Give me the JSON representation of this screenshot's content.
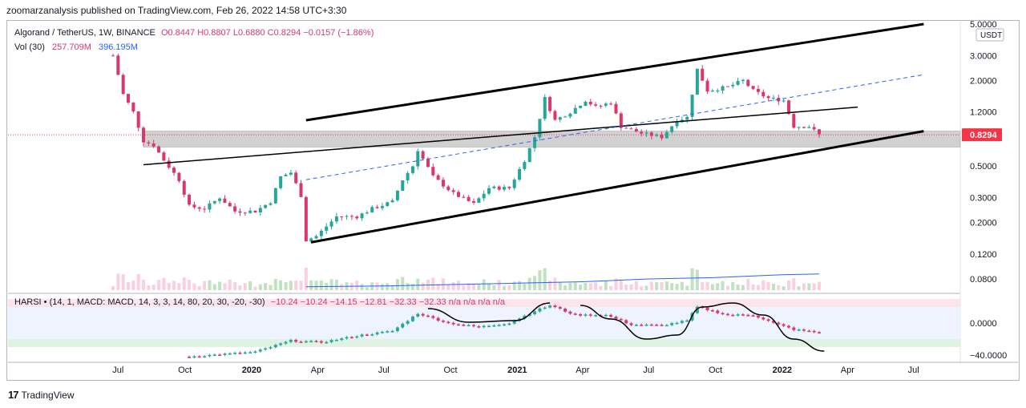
{
  "header": {
    "published": "zoomarzanalysis published on TradingView.com, Feb 26, 2022 14:58 UTC+3:30"
  },
  "legend": {
    "symbol": "Algorand / TetherUS, 1W, BINANCE",
    "ohlc": "O0.8447  H0.8807  L0.6880  C0.8294  −0.0157 (−1.86%)"
  },
  "volume_legend": {
    "label": "Vol (30)",
    "value1": "257.709M",
    "value2": "396.195M"
  },
  "indicator_legend": {
    "name": "HARSI • (14, 1, MACD: MACD, 14, 3, 3, 14, 80, 20, 30, -20, -30)",
    "values": "−10.24  −10.24  −14.15  −12.81  −32.33  −32.33  n/a  n/a  n/a  n/a"
  },
  "footer": {
    "logo_text": "TradingView",
    "logo_mark": "17"
  },
  "price_badge": {
    "value": "0.8294",
    "color": "#f23645"
  },
  "currency_badge": "USDT",
  "colors": {
    "up": "#26a69a",
    "down": "#d8386a",
    "ma": "#2962ff",
    "band_fill": "#c9c9c9"
  },
  "chart_data": {
    "type": "candlestick",
    "y_scale": "log",
    "y_ticks": [
      "5.0000",
      "3.0000",
      "2.0000",
      "1.2000",
      "0.8294",
      "0.5000",
      "0.3000",
      "0.2000",
      "0.1200",
      "0.0800"
    ],
    "y_tick_values": [
      5.0,
      3.0,
      2.0,
      1.2,
      0.8294,
      0.5,
      0.3,
      0.2,
      0.12,
      0.08
    ],
    "x_ticks": [
      "Jul",
      "Oct",
      "2020",
      "Apr",
      "Jul",
      "Oct",
      "2021",
      "Apr",
      "Jul",
      "Oct",
      "2022",
      "Apr",
      "Jul"
    ],
    "x_tick_dates": [
      "2019-07-01",
      "2019-10-01",
      "2020-01-01",
      "2020-04-01",
      "2020-07-01",
      "2020-10-01",
      "2021-01-01",
      "2021-04-01",
      "2021-07-01",
      "2021-10-01",
      "2022-01-01",
      "2022-04-01",
      "2022-07-01"
    ],
    "price_keypoints": [
      {
        "date": "2019-06-24",
        "price": 3.0
      },
      {
        "date": "2019-07-01",
        "price": 2.2
      },
      {
        "date": "2019-07-08",
        "price": 1.6
      },
      {
        "date": "2019-07-22",
        "price": 1.2
      },
      {
        "date": "2019-08-05",
        "price": 0.75
      },
      {
        "date": "2019-08-19",
        "price": 0.7
      },
      {
        "date": "2019-09-02",
        "price": 0.55
      },
      {
        "date": "2019-09-23",
        "price": 0.4
      },
      {
        "date": "2019-10-07",
        "price": 0.26
      },
      {
        "date": "2019-10-28",
        "price": 0.25
      },
      {
        "date": "2019-11-18",
        "price": 0.3
      },
      {
        "date": "2019-12-09",
        "price": 0.24
      },
      {
        "date": "2020-01-06",
        "price": 0.24
      },
      {
        "date": "2020-01-27",
        "price": 0.28
      },
      {
        "date": "2020-02-10",
        "price": 0.42
      },
      {
        "date": "2020-02-24",
        "price": 0.45
      },
      {
        "date": "2020-03-09",
        "price": 0.31
      },
      {
        "date": "2020-03-16",
        "price": 0.15
      },
      {
        "date": "2020-03-30",
        "price": 0.16
      },
      {
        "date": "2020-04-27",
        "price": 0.22
      },
      {
        "date": "2020-05-25",
        "price": 0.22
      },
      {
        "date": "2020-06-15",
        "price": 0.25
      },
      {
        "date": "2020-07-13",
        "price": 0.28
      },
      {
        "date": "2020-07-27",
        "price": 0.4
      },
      {
        "date": "2020-08-10",
        "price": 0.5
      },
      {
        "date": "2020-08-17",
        "price": 0.65
      },
      {
        "date": "2020-09-07",
        "price": 0.42
      },
      {
        "date": "2020-10-05",
        "price": 0.32
      },
      {
        "date": "2020-11-02",
        "price": 0.27
      },
      {
        "date": "2020-11-23",
        "price": 0.35
      },
      {
        "date": "2020-12-21",
        "price": 0.35
      },
      {
        "date": "2021-01-11",
        "price": 0.55
      },
      {
        "date": "2021-01-25",
        "price": 0.8
      },
      {
        "date": "2021-02-08",
        "price": 1.5
      },
      {
        "date": "2021-02-22",
        "price": 1.05
      },
      {
        "date": "2021-03-15",
        "price": 1.2
      },
      {
        "date": "2021-04-05",
        "price": 1.45
      },
      {
        "date": "2021-04-19",
        "price": 1.3
      },
      {
        "date": "2021-05-10",
        "price": 1.4
      },
      {
        "date": "2021-05-24",
        "price": 0.95
      },
      {
        "date": "2021-06-21",
        "price": 0.85
      },
      {
        "date": "2021-07-19",
        "price": 0.8
      },
      {
        "date": "2021-08-09",
        "price": 1.05
      },
      {
        "date": "2021-08-23",
        "price": 1.1
      },
      {
        "date": "2021-09-06",
        "price": 2.4
      },
      {
        "date": "2021-09-20",
        "price": 1.7
      },
      {
        "date": "2021-10-18",
        "price": 1.8
      },
      {
        "date": "2021-11-08",
        "price": 2.0
      },
      {
        "date": "2021-11-22",
        "price": 1.7
      },
      {
        "date": "2021-12-13",
        "price": 1.5
      },
      {
        "date": "2022-01-03",
        "price": 1.45
      },
      {
        "date": "2022-01-17",
        "price": 0.95
      },
      {
        "date": "2022-02-07",
        "price": 0.95
      },
      {
        "date": "2022-02-21",
        "price": 0.8294
      }
    ],
    "support_band": {
      "low": 0.68,
      "high": 0.88,
      "start": "2019-08-05",
      "end": "2022-06-30"
    },
    "trendlines": [
      {
        "name": "channel-upper",
        "color": "#000000",
        "width": 3,
        "from": {
          "date": "2020-03-16",
          "price": 1.05
        },
        "to": {
          "date": "2022-07-15",
          "price": 5.0
        }
      },
      {
        "name": "channel-lower",
        "color": "#000000",
        "width": 3,
        "from": {
          "date": "2020-03-23",
          "price": 0.145
        },
        "to": {
          "date": "2022-07-15",
          "price": 0.88
        }
      },
      {
        "name": "long-support",
        "color": "#000000",
        "width": 1.5,
        "from": {
          "date": "2019-08-05",
          "price": 0.51
        },
        "to": {
          "date": "2022-04-15",
          "price": 1.3
        }
      },
      {
        "name": "mid-dashed",
        "color": "#2962ff",
        "width": 1,
        "dash": true,
        "from": {
          "date": "2020-03-16",
          "price": 0.4
        },
        "to": {
          "date": "2022-07-15",
          "price": 2.2
        }
      }
    ],
    "volume_ma_points": [
      {
        "date": "2020-03-16",
        "v": 0.12
      },
      {
        "date": "2020-07-01",
        "v": 0.15
      },
      {
        "date": "2020-10-01",
        "v": 0.2
      },
      {
        "date": "2021-01-01",
        "v": 0.25
      },
      {
        "date": "2021-04-01",
        "v": 0.3
      },
      {
        "date": "2021-07-01",
        "v": 0.4
      },
      {
        "date": "2021-10-01",
        "v": 0.45
      },
      {
        "date": "2022-01-01",
        "v": 0.55
      },
      {
        "date": "2022-02-21",
        "v": 0.58
      }
    ],
    "indicator": {
      "y_ticks": [
        "0.0000",
        "−40.0000"
      ],
      "y_tick_values": [
        0,
        -40
      ],
      "y_range": [
        -45,
        35
      ],
      "band_upper": [
        20,
        30
      ],
      "band_lower": [
        -20,
        -30
      ],
      "keypoints": [
        {
          "date": "2019-10-07",
          "v": -42
        },
        {
          "date": "2020-01-06",
          "v": -36
        },
        {
          "date": "2020-02-24",
          "v": -22
        },
        {
          "date": "2020-04-06",
          "v": -24
        },
        {
          "date": "2020-06-01",
          "v": -15
        },
        {
          "date": "2020-07-13",
          "v": -10
        },
        {
          "date": "2020-08-17",
          "v": 12
        },
        {
          "date": "2020-09-28",
          "v": 0
        },
        {
          "date": "2020-11-09",
          "v": -5
        },
        {
          "date": "2020-12-21",
          "v": 0
        },
        {
          "date": "2021-01-25",
          "v": 15
        },
        {
          "date": "2021-02-15",
          "v": 22
        },
        {
          "date": "2021-03-22",
          "v": 10
        },
        {
          "date": "2021-05-03",
          "v": 10
        },
        {
          "date": "2021-06-07",
          "v": -2
        },
        {
          "date": "2021-07-19",
          "v": -3
        },
        {
          "date": "2021-08-23",
          "v": 3
        },
        {
          "date": "2021-09-06",
          "v": 20
        },
        {
          "date": "2021-10-18",
          "v": 10
        },
        {
          "date": "2021-11-22",
          "v": 10
        },
        {
          "date": "2021-12-20",
          "v": 0
        },
        {
          "date": "2022-01-17",
          "v": -8
        },
        {
          "date": "2022-02-21",
          "v": -12
        }
      ]
    },
    "drawn_curves": [
      {
        "name": "curve-left",
        "points": [
          {
            "date": "2020-08-31",
            "v": 18
          },
          {
            "date": "2020-10-26",
            "v": 1
          },
          {
            "date": "2020-12-28",
            "v": 3
          },
          {
            "date": "2021-02-15",
            "v": 25
          }
        ]
      },
      {
        "name": "curve-mid",
        "points": [
          {
            "date": "2021-03-29",
            "v": 22
          },
          {
            "date": "2021-05-10",
            "v": 5
          },
          {
            "date": "2021-06-28",
            "v": -20
          },
          {
            "date": "2021-08-09",
            "v": -15
          },
          {
            "date": "2021-09-13",
            "v": 20
          },
          {
            "date": "2021-10-25",
            "v": 25
          },
          {
            "date": "2021-12-06",
            "v": 10
          },
          {
            "date": "2022-01-17",
            "v": -20
          },
          {
            "date": "2022-02-28",
            "v": -35
          }
        ]
      }
    ]
  }
}
